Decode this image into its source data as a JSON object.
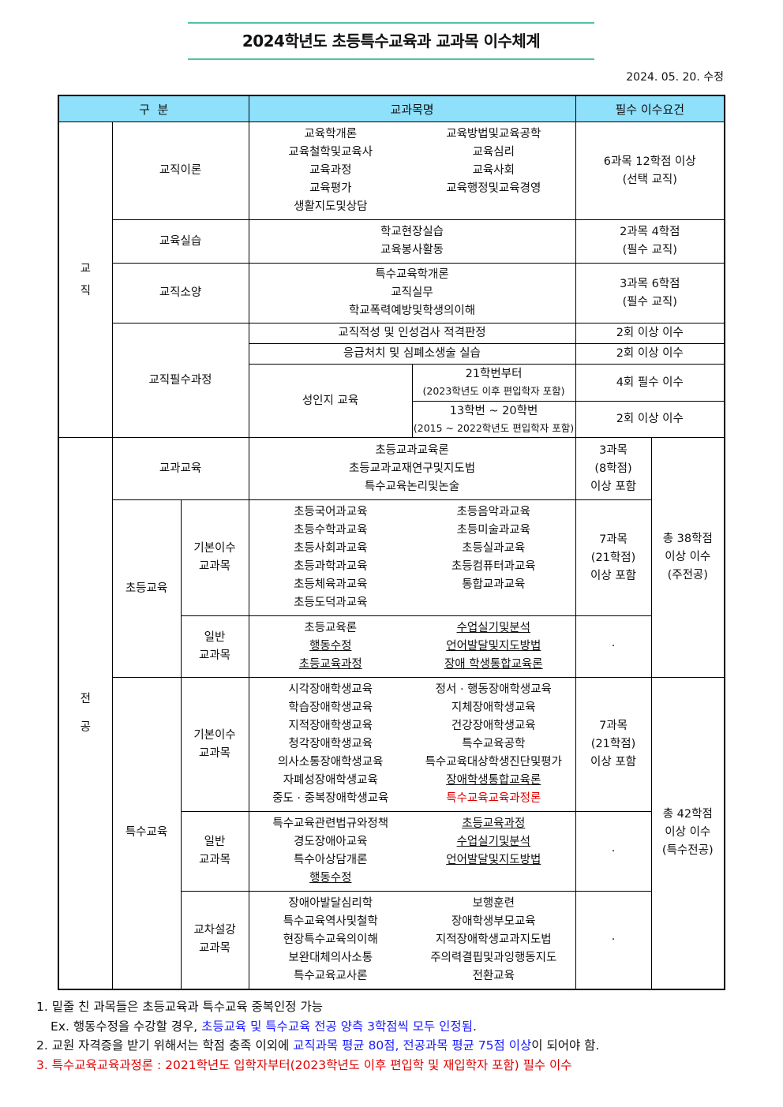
{
  "title": "2024학년도 초등특수교육과 교과목 이수체계",
  "revised": "2024. 05. 20. 수정",
  "header": {
    "category": "구  분",
    "subjects": "교과목명",
    "requirement": "필수 이수요건"
  },
  "teaching": {
    "label": "교\n\n직",
    "theory": {
      "label": "교직이론",
      "left": [
        "교육학개론",
        "교육철학및교육사",
        "교육과정",
        "교육평가",
        "생활지도및상담"
      ],
      "right": [
        "교육방법및교육공학",
        "교육심리",
        "교육사회",
        "교육행정및교육경영"
      ],
      "req": "6과목 12학점 이상\n(선택 교직)"
    },
    "practice": {
      "label": "교육실습",
      "items": [
        "학교현장실습",
        "교육봉사활동"
      ],
      "req": "2과목 4학점\n(필수 교직)"
    },
    "literacy": {
      "label": "교직소양",
      "items": [
        "특수교육학개론",
        "교직실무",
        "학교폭력예방및학생의이해"
      ],
      "req": "3과목 6학점\n(필수 교직)"
    },
    "required": {
      "label": "교직필수과정",
      "aptitude": {
        "text": "교직적성 및 인성검사 적격판정",
        "req": "2회 이상 이수"
      },
      "firstaid": {
        "text": "응급처치 및 심폐소생술 실습",
        "req": "2회 이상 이수"
      },
      "gender": {
        "label": "성인지 교육",
        "a": {
          "line1": "21학번부터",
          "line2": "(2023학년도 이후 편입학자 포함)",
          "req": "4회 필수 이수"
        },
        "b": {
          "line1": "13학번 ~ 20학번",
          "line2": "(2015 ~ 2022학년도 편입학자 포함)",
          "req": "2회 이상 이수"
        }
      }
    }
  },
  "major": {
    "label": "전\n\n\n공",
    "subject_ed": {
      "label": "교과교육",
      "items": [
        "초등교과교육론",
        "초등교과교재연구및지도법",
        "특수교육논리및논술"
      ],
      "req": "3과목\n(8학점)\n이상 포함"
    },
    "elementary": {
      "label": "초등교육",
      "total": "총 38학점\n이상 이수\n(주전공)",
      "basic": {
        "label": "기본이수\n교과목",
        "left": [
          {
            "t": "초등국어과교육"
          },
          {
            "t": "초등수학과교육"
          },
          {
            "t": "초등사회과교육"
          },
          {
            "t": "초등과학과교육"
          },
          {
            "t": "초등체육과교육"
          },
          {
            "t": "초등도덕과교육"
          }
        ],
        "right": [
          {
            "t": "초등음악과교육"
          },
          {
            "t": "초등미술과교육"
          },
          {
            "t": "초등실과교육"
          },
          {
            "t": "초등컴퓨터과교육"
          },
          {
            "t": "통합교과교육"
          }
        ],
        "req": "7과목\n(21학점)\n이상 포함"
      },
      "general": {
        "label": "일반\n교과목",
        "left": [
          {
            "t": "초등교육론"
          },
          {
            "t": "행동수정",
            "u": true
          },
          {
            "t": "초등교육과정",
            "u": true
          }
        ],
        "right": [
          {
            "t": "수업실기및분석",
            "u": true
          },
          {
            "t": "언어발달및지도방법",
            "u": true
          },
          {
            "t": "장애 학생통합교육론",
            "u": true
          }
        ],
        "req": "·"
      }
    },
    "special": {
      "label": "특수교육",
      "total": "총 42학점\n이상 이수\n(특수전공)",
      "basic": {
        "label": "기본이수\n교과목",
        "left": [
          {
            "t": "시각장애학생교육"
          },
          {
            "t": "학습장애학생교육"
          },
          {
            "t": "지적장애학생교육"
          },
          {
            "t": "청각장애학생교육"
          },
          {
            "t": "의사소통장애학생교육"
          },
          {
            "t": "자폐성장애학생교육"
          },
          {
            "t": "중도 · 중복장애학생교육"
          }
        ],
        "right": [
          {
            "t": "정서 · 행동장애학생교육"
          },
          {
            "t": "지체장애학생교육"
          },
          {
            "t": "건강장애학생교육"
          },
          {
            "t": "특수교육공학"
          },
          {
            "t": "특수교육대상학생진단및평가"
          },
          {
            "t": "장애학생통합교육론",
            "u": true
          },
          {
            "t": "특수교육교육과정론",
            "red": true
          }
        ],
        "req": "7과목\n(21학점)\n이상 포함"
      },
      "general": {
        "label": "일반\n교과목",
        "left": [
          {
            "t": "특수교육관련법규와정책"
          },
          {
            "t": "경도장애아교육"
          },
          {
            "t": "특수아상담개론"
          },
          {
            "t": "행동수정",
            "u": true
          }
        ],
        "right": [
          {
            "t": "초등교육과정",
            "u": true
          },
          {
            "t": "수업실기및분석",
            "u": true
          },
          {
            "t": "언어발달및지도방법",
            "u": true
          }
        ],
        "req": "·"
      },
      "cross": {
        "label": "교차설강\n교과목",
        "left": [
          {
            "t": "장애아발달심리학"
          },
          {
            "t": "특수교육역사및철학"
          },
          {
            "t": "현장특수교육의이해"
          },
          {
            "t": "보완대체의사소통"
          },
          {
            "t": "특수교육교사론"
          }
        ],
        "right": [
          {
            "t": "보행훈련"
          },
          {
            "t": "장애학생부모교육"
          },
          {
            "t": "지적장애학생교과지도법"
          },
          {
            "t": "주의력결핍및과잉행동지도"
          },
          {
            "t": "전환교육"
          }
        ],
        "req": "·"
      }
    }
  },
  "notes": {
    "n1": "1. 밑줄 친 과목들은 초등교육과 특수교육 중복인정 가능",
    "n1ex_a": "Ex. 행동수정을 수강할 경우, ",
    "n1ex_b": "초등교육 및 특수교육 전공 양측 3학점씩 모두 인정됨",
    ".": ".",
    "n1ex_c": ".",
    "n2_a": "2. 교원 자격증을 받기 위해서는 학점 충족 이외에 ",
    "n2_b": "교직과목 평균 80점, 전공과목 평균 75점 이상",
    "n2_c": "이 되어야 함.",
    "n3": "3. 특수교육교육과정론 : 2021학년도 입학자부터(2023학년도 이후 편입학 및 재입학자 포함) 필수 이수"
  },
  "colors": {
    "accent_line": "#4dc3a6",
    "header_bg": "#8ee0fb",
    "red": "#e00000",
    "blue": "#1a1aff"
  }
}
